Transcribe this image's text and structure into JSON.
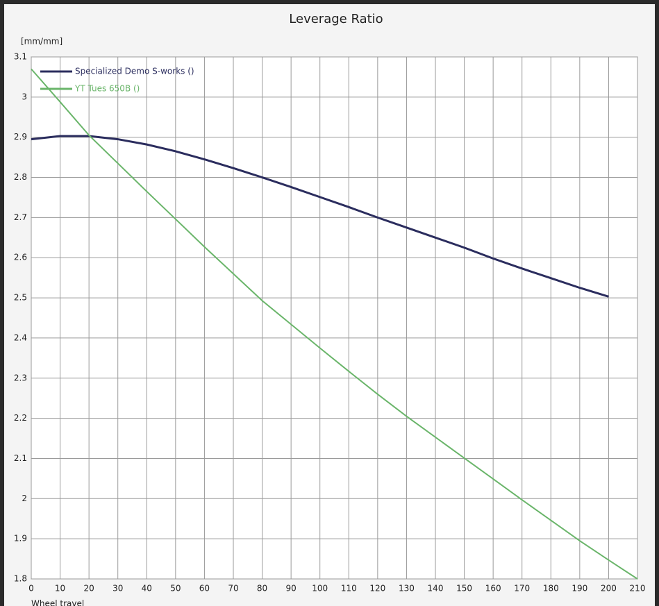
{
  "chart_data": {
    "type": "line",
    "title": "Leverage Ratio",
    "y_label": "[mm/mm]",
    "x_label": "Wheel travel",
    "x": [
      0,
      10,
      20,
      30,
      40,
      50,
      60,
      70,
      80,
      90,
      100,
      110,
      120,
      130,
      140,
      150,
      160,
      170,
      180,
      190,
      200,
      210
    ],
    "series": [
      {
        "name": "Specialized Demo S-works ()",
        "color": "#2b2d5e",
        "values": [
          2.895,
          2.903,
          2.903,
          2.895,
          2.882,
          2.865,
          2.845,
          2.823,
          2.8,
          2.776,
          2.751,
          2.726,
          2.7,
          2.675,
          2.65,
          2.625,
          2.598,
          2.573,
          2.549,
          2.525,
          2.503,
          null
        ]
      },
      {
        "name": "YT Tues 650B ()",
        "color": "#6ab56a",
        "values": [
          3.07,
          2.988,
          2.905,
          2.835,
          2.765,
          2.696,
          2.627,
          2.56,
          2.493,
          2.434,
          2.375,
          2.317,
          2.26,
          2.205,
          2.153,
          2.101,
          2.049,
          1.997,
          1.946,
          1.895,
          1.847,
          1.8
        ]
      }
    ],
    "xlim": [
      0,
      210
    ],
    "xticks": [
      0,
      10,
      20,
      30,
      40,
      50,
      60,
      70,
      80,
      90,
      100,
      110,
      120,
      130,
      140,
      150,
      160,
      170,
      180,
      190,
      200,
      210
    ],
    "ylim": [
      1.8,
      3.1
    ],
    "yticks": [
      1.8,
      1.9,
      2,
      2.1,
      2.2,
      2.3,
      2.4,
      2.5,
      2.6,
      2.7,
      2.8,
      2.9,
      3,
      3.1
    ],
    "grid": true,
    "legend": "top-left"
  }
}
